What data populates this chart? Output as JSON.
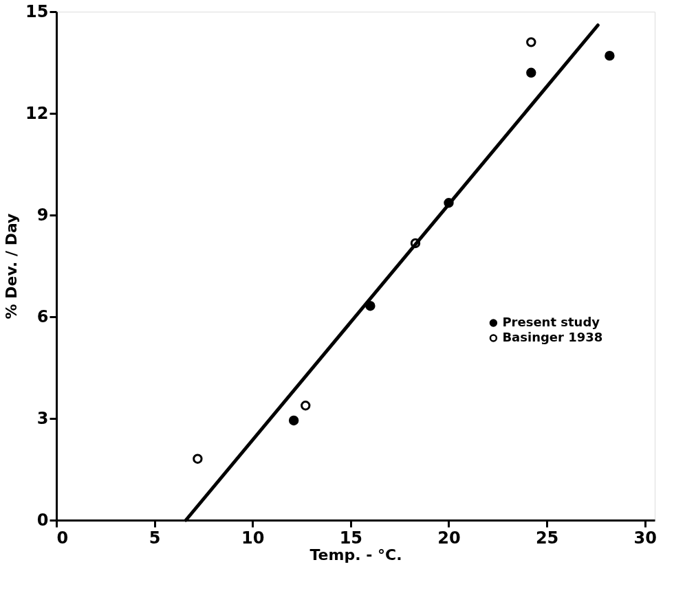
{
  "chart_data": {
    "type": "scatter",
    "xlabel": "Temp. - °C.",
    "ylabel": "% Dev. / Day",
    "xlim": [
      0,
      30.5
    ],
    "ylim": [
      0,
      15
    ],
    "xticks": [
      0,
      5,
      10,
      15,
      20,
      25,
      30
    ],
    "yticks": [
      0,
      3,
      6,
      9,
      12,
      15
    ],
    "grid": false,
    "legend": "right",
    "series": [
      {
        "name": "Present study",
        "color": "#000000",
        "marker": "circle",
        "x": [
          12.1,
          16.0,
          20.0,
          24.2,
          28.2
        ],
        "values": [
          2.94,
          6.32,
          9.36,
          13.2,
          13.7
        ]
      },
      {
        "name": "Basinger 1938",
        "color": "#000000",
        "marker": "circle",
        "x": [
          7.2,
          12.7,
          18.3,
          24.2
        ],
        "values": [
          1.81,
          3.38,
          8.17,
          14.1
        ]
      },
      {
        "type": "line",
        "color": "#000000",
        "marker": "none",
        "x": [
          6.6,
          27.6
        ],
        "values": [
          0,
          14.6
        ]
      }
    ]
  }
}
